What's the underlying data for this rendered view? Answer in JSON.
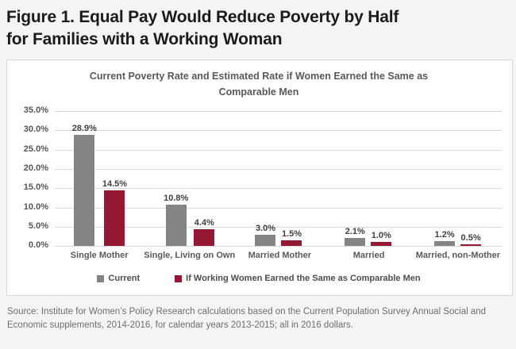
{
  "figure_title": {
    "lines": [
      "Figure 1. Equal Pay Would Reduce Poverty by Half",
      "for Families with a Working Woman"
    ]
  },
  "chart_data": {
    "type": "bar",
    "title": "Current Poverty Rate and Estimated Rate if Women Earned the Same as Comparable Men",
    "title_lines": [
      "Current Poverty Rate and Estimated Rate if Women Earned the Same as",
      "Comparable Men"
    ],
    "categories": [
      "Single Mother",
      "Single, Living on Own",
      "Married Mother",
      "Married",
      "Married, non-Mother"
    ],
    "series": [
      {
        "name": "Current",
        "color": "#848484",
        "values": [
          28.9,
          10.8,
          3.0,
          2.1,
          1.2
        ]
      },
      {
        "name": "If Working Women Earned the Same as Comparable Men",
        "color": "#941733",
        "values": [
          14.5,
          4.4,
          1.5,
          1.0,
          0.5
        ]
      }
    ],
    "data_labels": [
      [
        "28.9%",
        "10.8%",
        "3.0%",
        "2.1%",
        "1.2%"
      ],
      [
        "14.5%",
        "4.4%",
        "1.5%",
        "1.0%",
        "0.5%"
      ]
    ],
    "y_ticks": [
      "35.0%",
      "30.0%",
      "25.0%",
      "20.0%",
      "15.0%",
      "10.0%",
      "5.0%",
      "0.0%"
    ],
    "ylim": [
      0,
      35
    ],
    "xlabel": "",
    "ylabel": "",
    "grid": true,
    "legend_position": "bottom"
  },
  "source_note": "Source: Institute for Women’s Policy Research calculations based on the Current Population Survey Annual Social and Economic supplements, 2014-2016, for calendar years 2013-2015; all in 2016 dollars."
}
